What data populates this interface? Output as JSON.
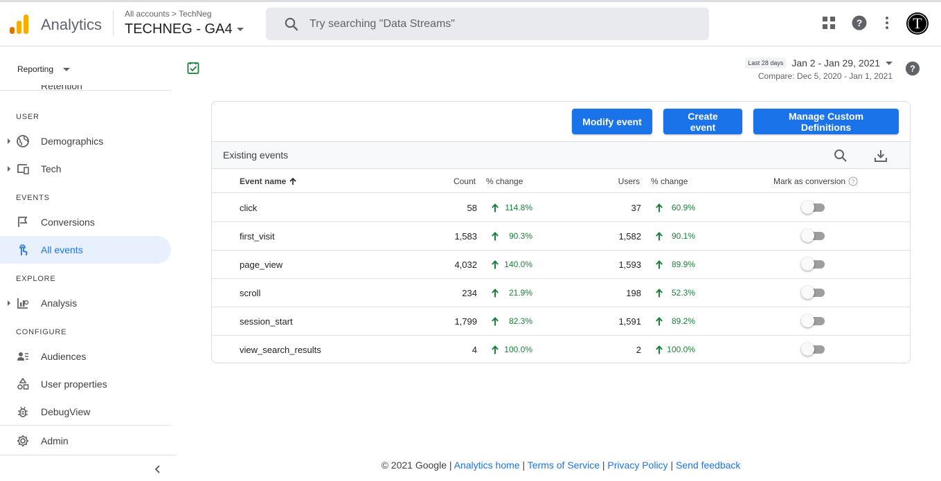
{
  "header": {
    "app_name": "Analytics",
    "breadcrumb": "All accounts > TechNeg",
    "property": "TECHNEG - GA4",
    "search_placeholder": "Try searching \"Data Streams\"",
    "avatar_letter": "T"
  },
  "sidebar": {
    "reporting_label": "Reporting",
    "cut_item": "Retention",
    "sections": {
      "user": "USER",
      "events": "EVENTS",
      "explore": "EXPLORE",
      "configure": "CONFIGURE"
    },
    "items": {
      "demographics": "Demographics",
      "tech": "Tech",
      "conversions": "Conversions",
      "all_events": "All events",
      "analysis": "Analysis",
      "audiences": "Audiences",
      "user_properties": "User properties",
      "debugview": "DebugView",
      "admin": "Admin"
    }
  },
  "date": {
    "badge": "Last 28 days",
    "range": "Jan 2 - Jan 29, 2021",
    "compare": "Compare: Dec 5, 2020 - Jan 1, 2021"
  },
  "actions": {
    "modify": "Modify event",
    "create": "Create event",
    "manage": "Manage Custom Definitions"
  },
  "table": {
    "title": "Existing events",
    "columns": {
      "event_name": "Event name",
      "count": "Count",
      "count_change": "% change",
      "users": "Users",
      "users_change": "% change",
      "conversion": "Mark as conversion"
    },
    "rows": [
      {
        "name": "click",
        "count": "58",
        "count_change": "114.8%",
        "users": "37",
        "users_change": "60.9%",
        "conversion": false
      },
      {
        "name": "first_visit",
        "count": "1,583",
        "count_change": "90.3%",
        "users": "1,582",
        "users_change": "90.1%",
        "conversion": false
      },
      {
        "name": "page_view",
        "count": "4,032",
        "count_change": "140.0%",
        "users": "1,593",
        "users_change": "89.9%",
        "conversion": false
      },
      {
        "name": "scroll",
        "count": "234",
        "count_change": "21.9%",
        "users": "198",
        "users_change": "52.3%",
        "conversion": false
      },
      {
        "name": "session_start",
        "count": "1,799",
        "count_change": "82.3%",
        "users": "1,591",
        "users_change": "89.2%",
        "conversion": false
      },
      {
        "name": "view_search_results",
        "count": "4",
        "count_change": "100.0%",
        "users": "2",
        "users_change": "100.0%",
        "conversion": false
      }
    ]
  },
  "footer": {
    "copyright": "© 2021 Google |",
    "sep": "|",
    "links": [
      "Analytics home",
      "Terms of Service",
      "Privacy Policy",
      "Send feedback"
    ]
  },
  "colors": {
    "accent": "#1a73e8",
    "positive": "#188038",
    "logo_orange": "#f9ab00",
    "logo_dark_orange": "#e37400"
  }
}
